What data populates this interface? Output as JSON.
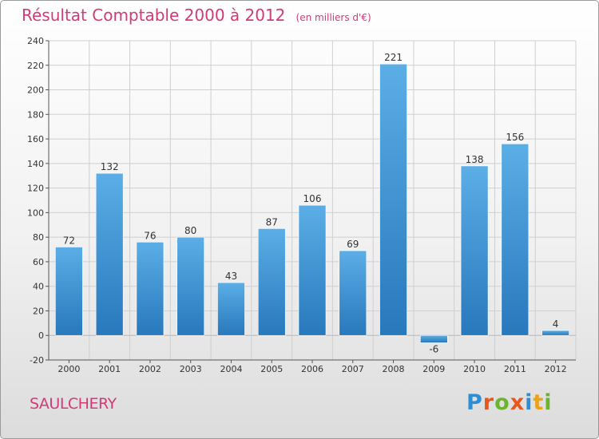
{
  "title": "Résultat Comptable 2000 à 2012",
  "subtitle": "(en milliers d'€)",
  "commune": "SAULCHERY",
  "logo": {
    "text": "Proxiti",
    "colors": [
      "#2c8fd6",
      "#e8581c",
      "#6ab52c",
      "#e8581c",
      "#2c8fd6",
      "#e8a21c",
      "#6ab52c"
    ]
  },
  "colors": {
    "accent": "#d23a78",
    "bar_light": "#5baee6",
    "bar_dark": "#2878bc",
    "grid": "#cfcfcf"
  },
  "chart_data": {
    "type": "bar",
    "categories": [
      "2000",
      "2001",
      "2002",
      "2003",
      "2004",
      "2005",
      "2006",
      "2007",
      "2008",
      "2009",
      "2010",
      "2011",
      "2012"
    ],
    "values": [
      72,
      132,
      76,
      80,
      43,
      87,
      106,
      69,
      221,
      -6,
      138,
      156,
      4
    ],
    "ylim": [
      -20,
      240
    ],
    "yticks": [
      -20,
      0,
      20,
      40,
      60,
      80,
      100,
      120,
      140,
      160,
      180,
      200,
      220,
      240
    ],
    "grid": true,
    "legend": "none",
    "data_labels": true
  }
}
